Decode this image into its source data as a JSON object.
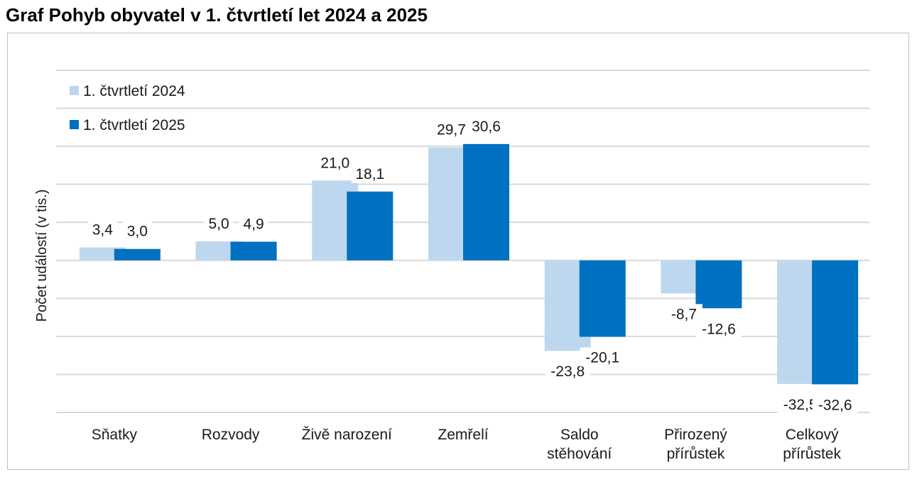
{
  "title": "Graf Pohyb obyvatel v 1. čtvrtletí let 2024 a 2025",
  "chart_data": {
    "type": "bar",
    "title": "Graf Pohyb obyvatel v 1. čtvrtletí let 2024 a 2025",
    "ylabel": "Počet událostí  (v tis.)",
    "xlabel": "",
    "ylim": [
      -40,
      50
    ],
    "ytick_step": 10,
    "y_tick_labels_shown": false,
    "grid": true,
    "legend_position": "top-left",
    "categories": [
      [
        "Sňatky"
      ],
      [
        "Rozvody"
      ],
      [
        "Živě narození"
      ],
      [
        "Zemřelí"
      ],
      [
        "Saldo",
        "stěhování"
      ],
      [
        "Přirozený",
        "přírůstek"
      ],
      [
        "Celkový",
        "přírůstek"
      ]
    ],
    "series": [
      {
        "name": "1. čtvrtletí 2024",
        "color": "#bdd7ee",
        "values": [
          3.4,
          5.0,
          21.0,
          29.7,
          -23.8,
          -8.7,
          -32.5
        ],
        "labels": [
          "3,4",
          "5,0",
          "21,0",
          "29,7",
          "-23,8",
          "-8,7",
          "-32,5"
        ]
      },
      {
        "name": "1. čtvrtletí 2025",
        "color": "#0070c0",
        "values": [
          3.0,
          4.9,
          18.1,
          30.6,
          -20.1,
          -12.6,
          -32.6
        ],
        "labels": [
          "3,0",
          "4,9",
          "18,1",
          "30,6",
          "-20,1",
          "-12,6",
          "-32,6"
        ]
      }
    ]
  }
}
